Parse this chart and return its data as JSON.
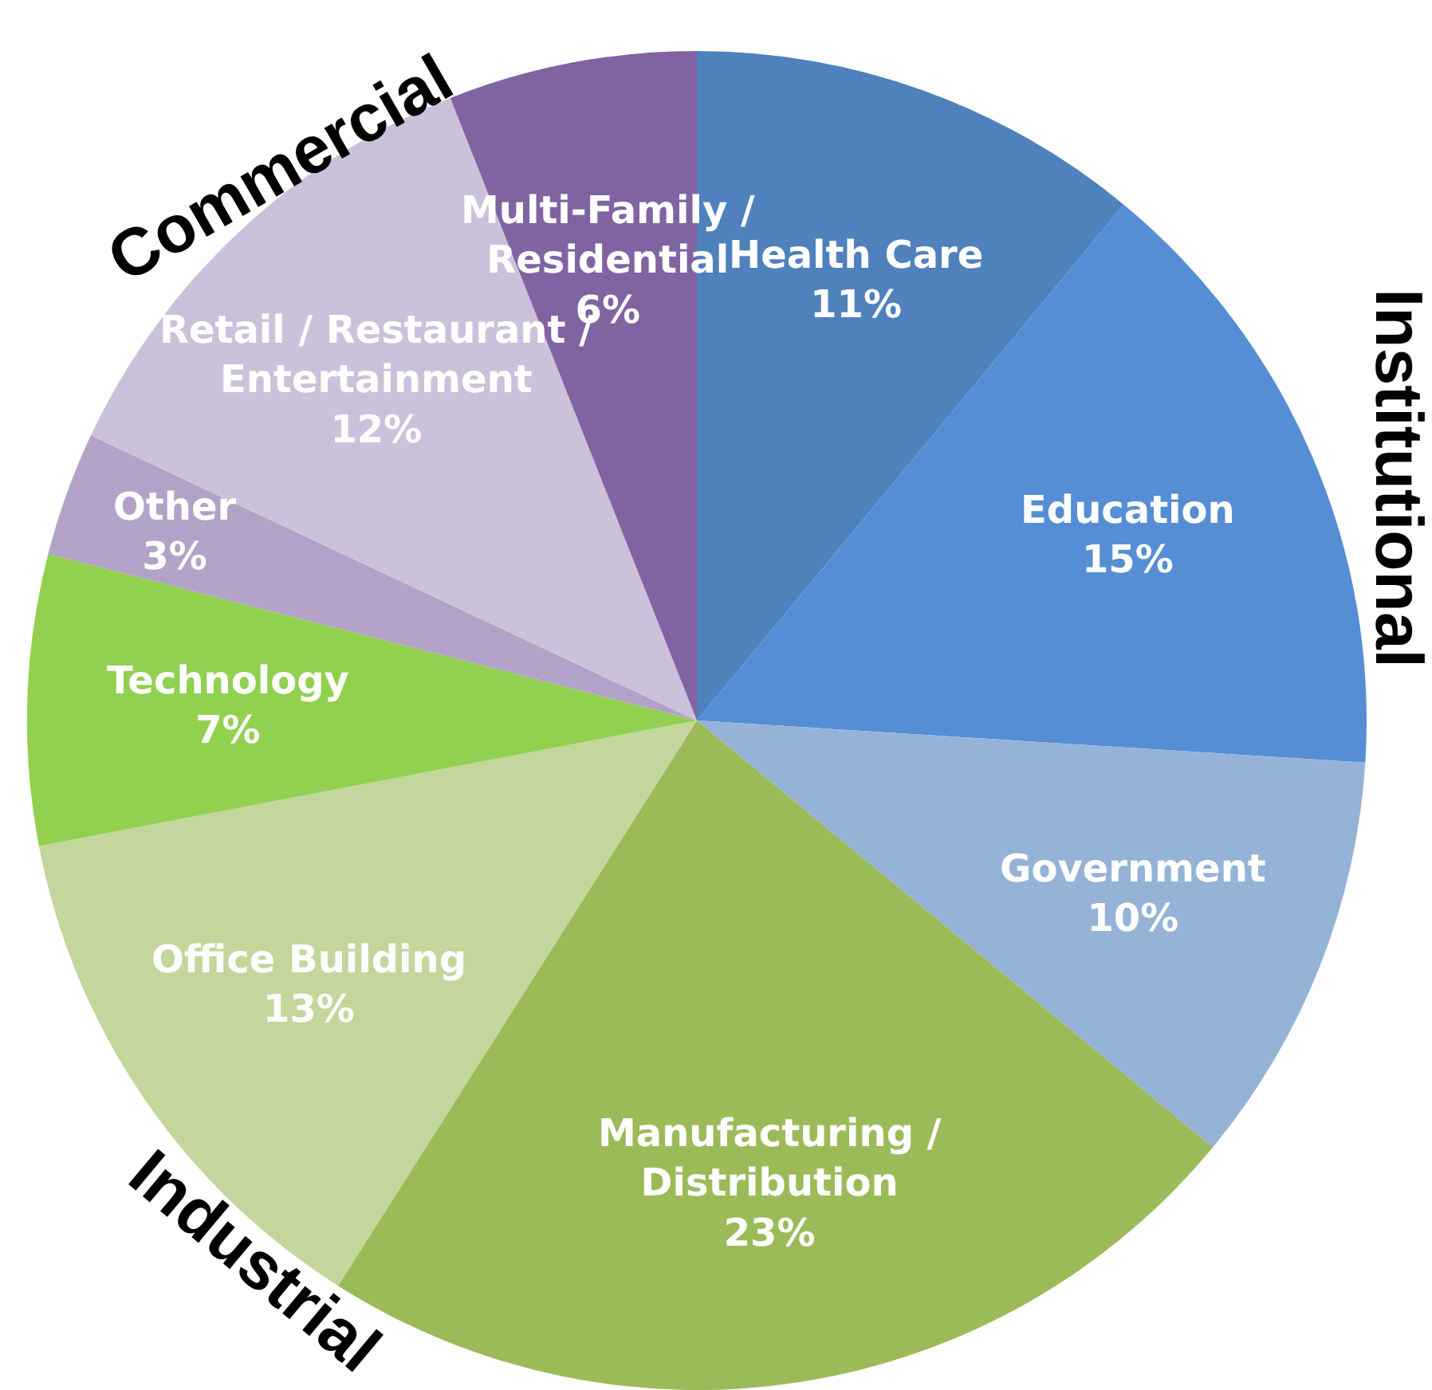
{
  "chart_data": {
    "type": "pie",
    "categories": [
      "Health Care",
      "Education",
      "Government",
      "Manufacturing / Distribution",
      "Office Building",
      "Technology",
      "Other",
      "Retail / Restaurant / Entertainment",
      "Multi-Family / Residential"
    ],
    "values": [
      11,
      15,
      10,
      23,
      13,
      7,
      3,
      12,
      6
    ],
    "value_labels": [
      "11%",
      "15%",
      "10%",
      "23%",
      "13%",
      "7%",
      "3%",
      "12%",
      "6%"
    ],
    "colors": [
      "#4f81bd",
      "#558ed5",
      "#95b3d7",
      "#9bbb59",
      "#c3d69b",
      "#92d050",
      "#b3a2c7",
      "#ccc1da",
      "#8064a2"
    ],
    "annotations": [
      "Commercial",
      "Institutional",
      "Industrial"
    ],
    "legend": false
  }
}
